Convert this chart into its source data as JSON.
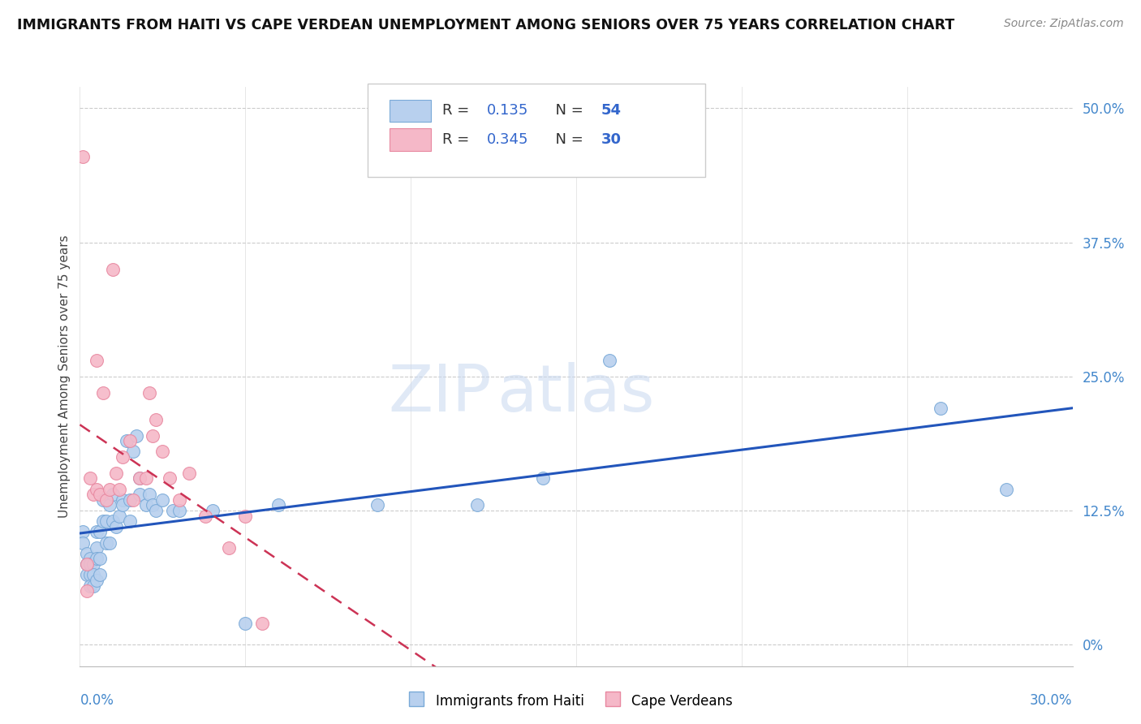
{
  "title": "IMMIGRANTS FROM HAITI VS CAPE VERDEAN UNEMPLOYMENT AMONG SENIORS OVER 75 YEARS CORRELATION CHART",
  "source": "Source: ZipAtlas.com",
  "ylabel": "Unemployment Among Seniors over 75 years",
  "ytick_vals": [
    0,
    0.125,
    0.25,
    0.375,
    0.5
  ],
  "ytick_labels": [
    "0%",
    "12.5%",
    "25.0%",
    "37.5%",
    "50.0%"
  ],
  "xlim": [
    0,
    0.3
  ],
  "ylim": [
    -0.02,
    0.52
  ],
  "watermark": "ZIPatlas",
  "legend1_R": "0.135",
  "legend1_N": "54",
  "legend2_R": "0.345",
  "legend2_N": "30",
  "haiti_color": "#b8d0ee",
  "haiti_edge": "#7aaad8",
  "cv_color": "#f5b8c8",
  "cv_edge": "#e888a0",
  "haiti_line_color": "#2255bb",
  "cv_line_color": "#cc3355",
  "haiti_x": [
    0.001,
    0.001,
    0.002,
    0.002,
    0.002,
    0.003,
    0.003,
    0.003,
    0.003,
    0.004,
    0.004,
    0.004,
    0.005,
    0.005,
    0.005,
    0.005,
    0.006,
    0.006,
    0.006,
    0.007,
    0.007,
    0.008,
    0.008,
    0.009,
    0.009,
    0.01,
    0.01,
    0.011,
    0.012,
    0.013,
    0.013,
    0.014,
    0.015,
    0.015,
    0.016,
    0.017,
    0.018,
    0.018,
    0.02,
    0.021,
    0.022,
    0.023,
    0.025,
    0.028,
    0.03,
    0.04,
    0.05,
    0.06,
    0.09,
    0.12,
    0.14,
    0.16,
    0.26,
    0.28
  ],
  "haiti_y": [
    0.105,
    0.095,
    0.085,
    0.075,
    0.065,
    0.08,
    0.075,
    0.065,
    0.055,
    0.075,
    0.065,
    0.055,
    0.105,
    0.09,
    0.08,
    0.06,
    0.105,
    0.08,
    0.065,
    0.135,
    0.115,
    0.115,
    0.095,
    0.13,
    0.095,
    0.14,
    0.115,
    0.11,
    0.12,
    0.135,
    0.13,
    0.19,
    0.135,
    0.115,
    0.18,
    0.195,
    0.155,
    0.14,
    0.13,
    0.14,
    0.13,
    0.125,
    0.135,
    0.125,
    0.125,
    0.125,
    0.02,
    0.13,
    0.13,
    0.13,
    0.155,
    0.265,
    0.22,
    0.145
  ],
  "cv_x": [
    0.001,
    0.002,
    0.002,
    0.003,
    0.004,
    0.005,
    0.005,
    0.006,
    0.007,
    0.008,
    0.009,
    0.01,
    0.011,
    0.012,
    0.013,
    0.015,
    0.016,
    0.018,
    0.02,
    0.021,
    0.022,
    0.023,
    0.025,
    0.027,
    0.03,
    0.033,
    0.038,
    0.045,
    0.05,
    0.055
  ],
  "cv_y": [
    0.455,
    0.075,
    0.05,
    0.155,
    0.14,
    0.265,
    0.145,
    0.14,
    0.235,
    0.135,
    0.145,
    0.35,
    0.16,
    0.145,
    0.175,
    0.19,
    0.135,
    0.155,
    0.155,
    0.235,
    0.195,
    0.21,
    0.18,
    0.155,
    0.135,
    0.16,
    0.12,
    0.09,
    0.12,
    0.02
  ]
}
